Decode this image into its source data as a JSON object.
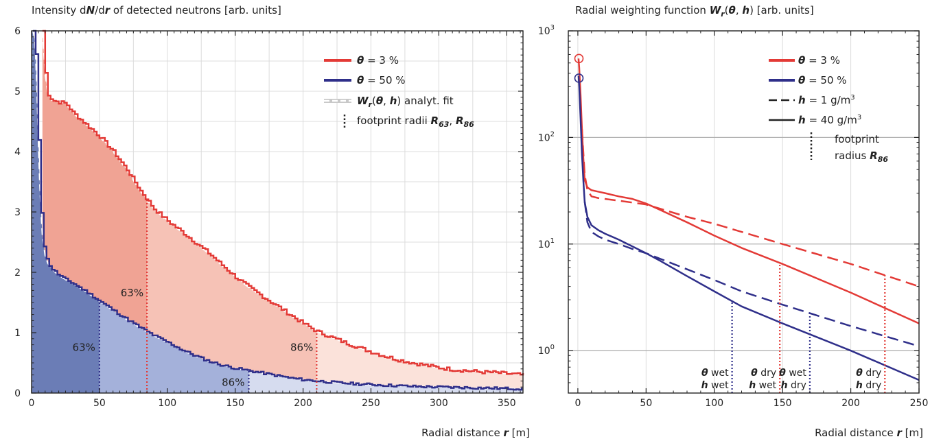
{
  "colors": {
    "red": "#e33a36",
    "blue": "#2f2f8a",
    "fill_red_dark": "#f0a394",
    "fill_red_mid": "#f6c2b6",
    "fill_red_light": "#fbe2da",
    "fill_blue_dark": "#6b7db6",
    "fill_blue_mid": "#a4b1da",
    "fill_blue_light": "#d6dcef",
    "grid": "#dcdcdc",
    "ref_line": "#b0b0b0"
  },
  "chart_data": [
    {
      "type": "area",
      "title": {
        "pre": "Intensity d",
        "b1": "N",
        "mid": "/d",
        "b2": "r",
        "post": " of detected neutrons [arb. units]"
      },
      "xlabel": {
        "pre": "Radial distance ",
        "b": "r",
        "post": " [m]"
      },
      "xlim": [
        0,
        362
      ],
      "ylim": [
        0,
        6
      ],
      "xticks": [
        "0",
        "50",
        "100",
        "150",
        "200",
        "250",
        "300",
        "350"
      ],
      "yticks": [
        "0",
        "1",
        "2",
        "3",
        "4",
        "5",
        "6"
      ],
      "grid": true,
      "legend_position": "top-right",
      "legend": {
        "theta3": {
          "sym": "θ",
          "label": " =   3 %"
        },
        "theta50": {
          "sym": "θ",
          "label": " = 50 %"
        },
        "fit": {
          "w": "W",
          "sub": "r",
          "args_pre": "(",
          "th": "θ",
          "comma": ", ",
          "h": "h",
          "args_post": ") analyt. fit"
        },
        "radii": {
          "text": "footprint radii ",
          "r63": "R",
          "r63sub": "63",
          "sep": ", ",
          "r86": "R",
          "r86sub": "86"
        }
      },
      "series": [
        {
          "name": "θ = 3 %",
          "x": [
            8,
            10,
            12,
            15,
            20,
            25,
            30,
            40,
            50,
            60,
            70,
            80,
            90,
            100,
            110,
            120,
            130,
            140,
            150,
            160,
            170,
            180,
            190,
            200,
            210,
            220,
            230,
            240,
            250,
            260,
            270,
            280,
            290,
            300,
            310,
            320,
            330,
            340,
            350,
            362
          ],
          "y": [
            6.0,
            5.3,
            4.95,
            4.85,
            4.82,
            4.8,
            4.65,
            4.45,
            4.25,
            4.0,
            3.7,
            3.35,
            3.05,
            2.85,
            2.68,
            2.5,
            2.32,
            2.12,
            1.92,
            1.75,
            1.6,
            1.45,
            1.3,
            1.15,
            1.02,
            0.93,
            0.84,
            0.76,
            0.68,
            0.61,
            0.55,
            0.5,
            0.46,
            0.42,
            0.39,
            0.37,
            0.35,
            0.34,
            0.32,
            0.3
          ]
        },
        {
          "name": "θ = 50 %",
          "x": [
            1,
            2,
            3,
            4,
            5,
            6,
            7,
            8,
            10,
            12,
            15,
            20,
            25,
            30,
            40,
            50,
            60,
            70,
            80,
            90,
            100,
            110,
            120,
            130,
            140,
            150,
            160,
            170,
            180,
            190,
            200,
            220,
            240,
            260,
            280,
            300,
            320,
            340,
            362
          ],
          "y": [
            6.0,
            5.9,
            5.6,
            5.0,
            4.2,
            3.5,
            3.0,
            2.6,
            2.28,
            2.15,
            2.05,
            1.95,
            1.88,
            1.82,
            1.68,
            1.52,
            1.37,
            1.22,
            1.08,
            0.95,
            0.84,
            0.72,
            0.62,
            0.53,
            0.46,
            0.41,
            0.37,
            0.33,
            0.29,
            0.25,
            0.22,
            0.18,
            0.15,
            0.13,
            0.11,
            0.1,
            0.09,
            0.08,
            0.07
          ]
        }
      ],
      "footprint_radii": {
        "theta3": {
          "R63": 85,
          "R86": 210,
          "label63": "63%",
          "label86": "86%"
        },
        "theta50": {
          "R63": 50,
          "R86": 160,
          "label63": "63%",
          "label86": "86%"
        }
      }
    },
    {
      "type": "line",
      "title": {
        "pre": "Radial weighting function ",
        "w": "W",
        "sub": "r",
        "args_pre": "(",
        "th": "θ",
        "comma": ", ",
        "h": "h",
        "post": ") [arb. units]"
      },
      "xlabel": {
        "pre": "Radial distance ",
        "b": "r",
        "post": " [m]"
      },
      "xlim": [
        -7,
        250
      ],
      "ylim": [
        0.4,
        1000
      ],
      "yscale": "log",
      "xticks": [
        "0",
        "50",
        "100",
        "150",
        "200",
        "250"
      ],
      "yticks": [
        {
          "base": "10",
          "exp": "0"
        },
        {
          "base": "10",
          "exp": "1"
        },
        {
          "base": "10",
          "exp": "2"
        },
        {
          "base": "10",
          "exp": "3"
        }
      ],
      "grid": true,
      "legend_position": "top-right",
      "legend": {
        "theta3": {
          "sym": "θ",
          "label": " =   3 %"
        },
        "theta50": {
          "sym": "θ",
          "label": " = 50 %"
        },
        "h1": {
          "sym": "h",
          "label": " =   1 g/m",
          "sup": "3"
        },
        "h40": {
          "sym": "h",
          "label": " = 40 g/m",
          "sup": "3"
        },
        "radius": {
          "l1": "footprint",
          "l2": "radius ",
          "r": "R",
          "rsub": "86"
        }
      },
      "series": [
        {
          "name": "θ = 3 %, h = 40 g/m³",
          "x": [
            0.5,
            1,
            2,
            3,
            4,
            5,
            7,
            10,
            15,
            20,
            30,
            40,
            50,
            60,
            80,
            100,
            120,
            150,
            200,
            250
          ],
          "y": [
            550,
            450,
            250,
            120,
            65,
            40,
            34,
            32,
            31,
            30,
            28,
            26.5,
            24,
            21,
            16,
            12,
            9.2,
            6.5,
            3.5,
            1.8
          ]
        },
        {
          "name": "θ = 3 %, h = 1 g/m³",
          "x": [
            3,
            5,
            7,
            10,
            15,
            20,
            30,
            40,
            50,
            60,
            80,
            100,
            120,
            150,
            200,
            250
          ],
          "y": [
            120,
            45,
            32,
            28,
            27,
            26.5,
            25.5,
            24.5,
            23.5,
            21.5,
            18,
            15.5,
            13,
            10,
            6.5,
            4
          ]
        },
        {
          "name": "θ = 50 %, h = 40 g/m³",
          "x": [
            0.5,
            1,
            2,
            3,
            4,
            5,
            7,
            10,
            15,
            20,
            30,
            40,
            50,
            60,
            80,
            100,
            120,
            150,
            200,
            250
          ],
          "y": [
            380,
            300,
            150,
            70,
            40,
            25,
            18,
            15,
            13.5,
            12.5,
            11,
            9.5,
            8.2,
            7,
            5,
            3.6,
            2.6,
            1.8,
            1.0,
            0.53
          ]
        },
        {
          "name": "θ = 50 %, h = 1 g/m³",
          "x": [
            5,
            7,
            10,
            15,
            20,
            30,
            40,
            50,
            60,
            80,
            100,
            120,
            150,
            200,
            250
          ],
          "y": [
            25,
            16,
            13,
            11.8,
            11,
            10,
            9,
            8.2,
            7.3,
            5.8,
            4.6,
            3.6,
            2.7,
            1.7,
            1.1
          ]
        }
      ],
      "markers": [
        {
          "series": "θ = 3 %",
          "x": 0.8,
          "y": 550
        },
        {
          "series": "θ = 50 %",
          "x": 0.8,
          "y": 360
        }
      ],
      "footprint_radii": [
        {
          "x": 113,
          "theta": "θ",
          "theta_label": " wet",
          "h": "h",
          "h_label": " wet",
          "color": "blue"
        },
        {
          "x": 148,
          "theta": "θ",
          "theta_label": " dry",
          "h": "h",
          "h_label": " wet",
          "color": "red"
        },
        {
          "x": 170,
          "theta": "θ",
          "theta_label": " wet",
          "h": "h",
          "h_label": " dry",
          "color": "blue"
        },
        {
          "x": 225,
          "theta": "θ",
          "theta_label": " dry",
          "h": "h",
          "h_label": " dry",
          "color": "red"
        }
      ]
    }
  ]
}
